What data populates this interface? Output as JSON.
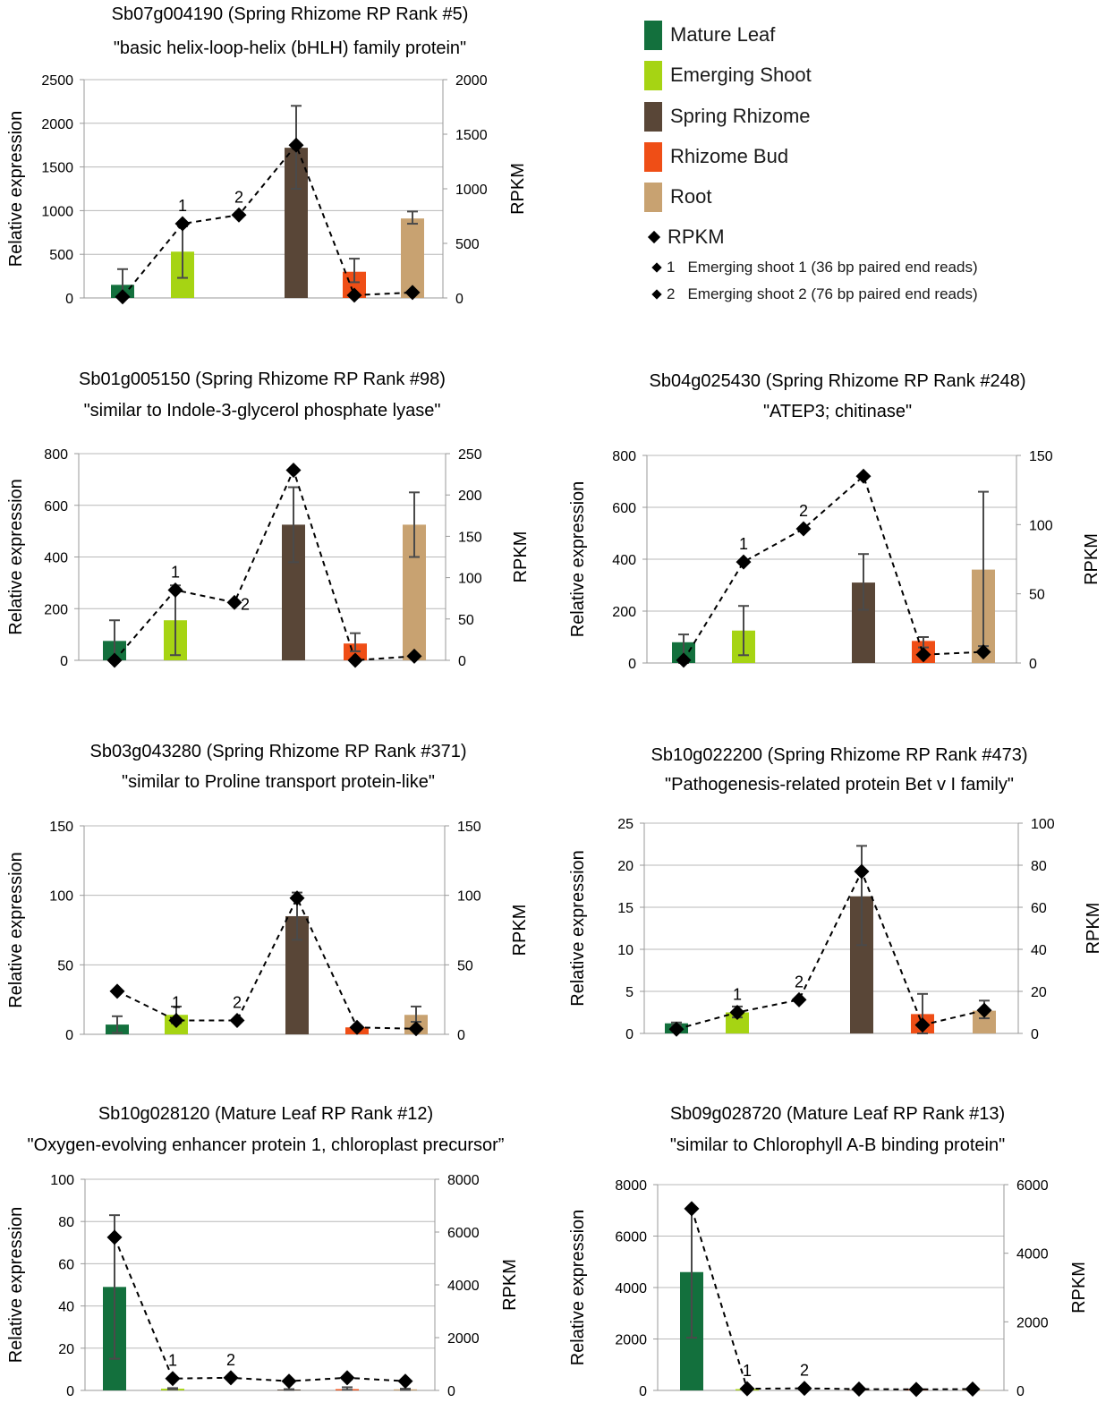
{
  "legend": {
    "tissues": [
      {
        "label": "Mature Leaf",
        "color": "#13703d"
      },
      {
        "label": "Emerging Shoot",
        "color": "#a6d413"
      },
      {
        "label": "Spring Rhizome",
        "color": "#594637"
      },
      {
        "label": "Rhizome Bud",
        "color": "#ef4e16"
      },
      {
        "label": "Root",
        "color": "#c8a271"
      }
    ],
    "rpkm_label": "RPKM",
    "rpkm_notes": [
      {
        "num": "1",
        "text": "Emerging shoot 1 (36 bp paired end reads)"
      },
      {
        "num": "2",
        "text": "Emerging shoot 2 (76 bp paired end reads)"
      }
    ]
  },
  "chart_data": [
    {
      "type": "bar",
      "title": "Sb07g004190 (Spring Rhizome RP Rank #5)",
      "subtitle": "\"basic helix-loop-helix (bHLH) family protein\"",
      "ylabel": "Relative expression",
      "y2label": "RPKM",
      "ylim": [
        0,
        2500
      ],
      "yticks": [
        "0",
        "500",
        "1000",
        "1500",
        "2000",
        "2500"
      ],
      "y2lim": [
        0,
        2000
      ],
      "y2ticks": [
        "0",
        "500",
        "1000",
        "1500",
        "2000"
      ],
      "bars": [
        {
          "tissue": "Mature Leaf",
          "value": 150,
          "err": [
            0,
            330
          ]
        },
        {
          "tissue": "Emerging Shoot",
          "value": 530,
          "err": [
            230,
            820
          ]
        },
        {
          "tissue": "Spring Rhizome",
          "value": 1720,
          "err": [
            1250,
            2200
          ]
        },
        {
          "tissue": "Rhizome Bud",
          "value": 300,
          "err": [
            180,
            450
          ]
        },
        {
          "tissue": "Root",
          "value": 910,
          "err": [
            850,
            990
          ]
        }
      ],
      "rpkm": [
        {
          "x": 0,
          "value": 10
        },
        {
          "x": 1,
          "value": 680,
          "label": "1"
        },
        {
          "x": 2,
          "value": 760,
          "label": "2"
        },
        {
          "x": 3,
          "value": 1400
        },
        {
          "x": 4,
          "value": 25
        },
        {
          "x": 5,
          "value": 50
        }
      ]
    },
    {
      "type": "bar",
      "title": "Sb01g005150 (Spring Rhizome RP Rank #98)",
      "subtitle": "\"similar to Indole-3-glycerol phosphate lyase\"",
      "ylabel": "Relative expression",
      "y2label": "RPKM",
      "ylim": [
        0,
        800
      ],
      "yticks": [
        "0",
        "200",
        "400",
        "600",
        "800"
      ],
      "y2lim": [
        0,
        250
      ],
      "y2ticks": [
        "0",
        "50",
        "100",
        "150",
        "200",
        "250"
      ],
      "bars": [
        {
          "tissue": "Mature Leaf",
          "value": 75,
          "err": [
            0,
            155
          ]
        },
        {
          "tissue": "Emerging Shoot",
          "value": 155,
          "err": [
            20,
            290
          ]
        },
        {
          "tissue": "Spring Rhizome",
          "value": 525,
          "err": [
            380,
            670
          ]
        },
        {
          "tissue": "Rhizome Bud",
          "value": 65,
          "err": [
            35,
            105
          ]
        },
        {
          "tissue": "Root",
          "value": 525,
          "err": [
            400,
            650
          ]
        }
      ],
      "rpkm": [
        {
          "x": 0,
          "value": 0
        },
        {
          "x": 1,
          "value": 85,
          "label": "1"
        },
        {
          "x": 2,
          "value": 70,
          "label": "2"
        },
        {
          "x": 3,
          "value": 230
        },
        {
          "x": 4,
          "value": 0
        },
        {
          "x": 5,
          "value": 5
        }
      ]
    },
    {
      "type": "bar",
      "title": "Sb04g025430 (Spring Rhizome RP Rank #248)",
      "subtitle": "\"ATEP3; chitinase\"",
      "ylabel": "Relative expression",
      "y2label": "RPKM",
      "ylim": [
        0,
        800
      ],
      "yticks": [
        "0",
        "200",
        "400",
        "600",
        "800"
      ],
      "y2lim": [
        0,
        150
      ],
      "y2ticks": [
        "0",
        "50",
        "100",
        "150"
      ],
      "bars": [
        {
          "tissue": "Mature Leaf",
          "value": 80,
          "err": [
            0,
            110
          ]
        },
        {
          "tissue": "Emerging Shoot",
          "value": 125,
          "err": [
            30,
            220
          ]
        },
        {
          "tissue": "Spring Rhizome",
          "value": 310,
          "err": [
            205,
            420
          ]
        },
        {
          "tissue": "Rhizome Bud",
          "value": 85,
          "err": [
            60,
            100
          ]
        },
        {
          "tissue": "Root",
          "value": 360,
          "err": [
            65,
            660
          ]
        }
      ],
      "rpkm": [
        {
          "x": 0,
          "value": 2
        },
        {
          "x": 1,
          "value": 73,
          "label": "1"
        },
        {
          "x": 2,
          "value": 97,
          "label": "2"
        },
        {
          "x": 3,
          "value": 135
        },
        {
          "x": 4,
          "value": 6
        },
        {
          "x": 5,
          "value": 8
        }
      ]
    },
    {
      "type": "bar",
      "title": "Sb03g043280 (Spring Rhizome RP Rank #371)",
      "subtitle": "\"similar to Proline transport protein-like\"",
      "ylabel": "Relative expression",
      "y2label": "RPKM",
      "ylim": [
        0,
        150
      ],
      "yticks": [
        "0",
        "50",
        "100",
        "150"
      ],
      "y2lim": [
        0,
        150
      ],
      "y2ticks": [
        "0",
        "50",
        "100",
        "150"
      ],
      "bars": [
        {
          "tissue": "Mature Leaf",
          "value": 7,
          "err": [
            1,
            13
          ]
        },
        {
          "tissue": "Emerging Shoot",
          "value": 14,
          "err": [
            8,
            20
          ]
        },
        {
          "tissue": "Spring Rhizome",
          "value": 85,
          "err": [
            68,
            102
          ]
        },
        {
          "tissue": "Rhizome Bud",
          "value": 5,
          "err": [
            4,
            6
          ]
        },
        {
          "tissue": "Root",
          "value": 14,
          "err": [
            9,
            20
          ]
        }
      ],
      "rpkm": [
        {
          "x": 0,
          "value": 31
        },
        {
          "x": 1,
          "value": 10,
          "label": "1"
        },
        {
          "x": 2,
          "value": 10,
          "label": "2"
        },
        {
          "x": 3,
          "value": 98
        },
        {
          "x": 4,
          "value": 5
        },
        {
          "x": 5,
          "value": 4
        }
      ]
    },
    {
      "type": "bar",
      "title": "Sb10g022200 (Spring Rhizome RP Rank #473)",
      "subtitle": "\"Pathogenesis-related protein Bet v I family\"",
      "ylabel": "Relative expression",
      "y2label": "RPKM",
      "ylim": [
        0,
        25
      ],
      "yticks": [
        "0",
        "5",
        "10",
        "15",
        "20",
        "25"
      ],
      "y2lim": [
        0,
        100
      ],
      "y2ticks": [
        "0",
        "20",
        "40",
        "60",
        "80",
        "100"
      ],
      "bars": [
        {
          "tissue": "Mature Leaf",
          "value": 1.2,
          "err": [
            1.0,
            1.3
          ]
        },
        {
          "tissue": "Emerging Shoot",
          "value": 2.5,
          "err": [
            1.9,
            3.2
          ]
        },
        {
          "tissue": "Spring Rhizome",
          "value": 16.3,
          "err": [
            10.5,
            22.3
          ]
        },
        {
          "tissue": "Rhizome Bud",
          "value": 2.3,
          "err": [
            0,
            4.7
          ]
        },
        {
          "tissue": "Root",
          "value": 2.7,
          "err": [
            1.8,
            3.9
          ]
        }
      ],
      "rpkm": [
        {
          "x": 0,
          "value": 2
        },
        {
          "x": 1,
          "value": 10,
          "label": "1"
        },
        {
          "x": 2,
          "value": 16,
          "label": "2"
        },
        {
          "x": 3,
          "value": 77
        },
        {
          "x": 4,
          "value": 4
        },
        {
          "x": 5,
          "value": 11
        }
      ]
    },
    {
      "type": "bar",
      "title": "Sb10g028120  (Mature Leaf RP Rank #12)",
      "subtitle": "\"Oxygen-evolving enhancer protein 1, chloroplast precursor”",
      "ylabel": "Relative expression",
      "y2label": "RPKM",
      "ylim": [
        0,
        100
      ],
      "yticks": [
        "0",
        "20",
        "40",
        "60",
        "80",
        "100"
      ],
      "y2lim": [
        0,
        8000
      ],
      "y2ticks": [
        "0",
        "2000",
        "4000",
        "6000",
        "8000"
      ],
      "bars": [
        {
          "tissue": "Mature Leaf",
          "value": 49,
          "err": [
            15,
            83
          ]
        },
        {
          "tissue": "Emerging Shoot",
          "value": 0.8,
          "err": [
            0.5,
            1.1
          ]
        },
        {
          "tissue": "Spring Rhizome",
          "value": 0.4,
          "err": [
            0.2,
            0.6
          ]
        },
        {
          "tissue": "Rhizome Bud",
          "value": 0.6,
          "err": [
            0.3,
            1.5
          ]
        },
        {
          "tissue": "Root",
          "value": 0.5,
          "err": [
            0.2,
            0.8
          ]
        }
      ],
      "rpkm": [
        {
          "x": 0,
          "value": 5800
        },
        {
          "x": 1,
          "value": 450,
          "label": "1"
        },
        {
          "x": 2,
          "value": 480,
          "label": "2"
        },
        {
          "x": 3,
          "value": 350
        },
        {
          "x": 4,
          "value": 480
        },
        {
          "x": 5,
          "value": 350
        }
      ]
    },
    {
      "type": "bar",
      "title": "Sb09g028720 (Mature Leaf RP Rank #13)",
      "subtitle": "\"similar to Chlorophyll A-B binding protein\"",
      "ylabel": "Relative expression",
      "y2label": "RPKM",
      "ylim": [
        0,
        8000
      ],
      "yticks": [
        "0",
        "2000",
        "4000",
        "6000",
        "8000"
      ],
      "y2lim": [
        0,
        6000
      ],
      "y2ticks": [
        "0",
        "2000",
        "4000",
        "6000"
      ],
      "bars": [
        {
          "tissue": "Mature Leaf",
          "value": 4600,
          "err": [
            2050,
            7050
          ]
        },
        {
          "tissue": "Emerging Shoot",
          "value": 50,
          "err": [
            30,
            70
          ]
        },
        {
          "tissue": "Spring Rhizome",
          "value": 20,
          "err": [
            10,
            30
          ]
        },
        {
          "tissue": "Rhizome Bud",
          "value": 40,
          "err": [
            20,
            60
          ]
        },
        {
          "tissue": "Root",
          "value": 15,
          "err": [
            5,
            25
          ]
        }
      ],
      "rpkm": [
        {
          "x": 0,
          "value": 5300
        },
        {
          "x": 1,
          "value": 50,
          "label": "1"
        },
        {
          "x": 2,
          "value": 60,
          "label": "2"
        },
        {
          "x": 3,
          "value": 40
        },
        {
          "x": 4,
          "value": 30
        },
        {
          "x": 5,
          "value": 40
        }
      ]
    }
  ]
}
